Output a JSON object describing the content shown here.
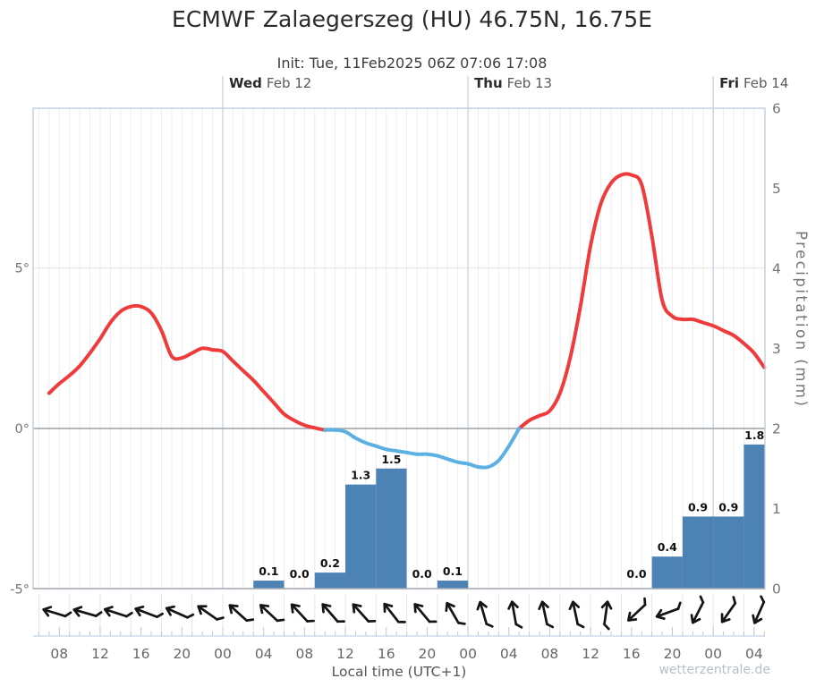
{
  "chart_data": {
    "type": "meteogram (smoothed temperature line + precipitation bars + wind arrows)",
    "title": "ECMWF Zalaegerszeg (HU) 46.75N, 16.75E",
    "subtitle": "Init: Tue, 11Feb2025 06Z 07:06 17:08",
    "xlabel": "Local time (UTC+1)",
    "watermark": "wetterzentrale.de",
    "time_axis": {
      "note": "t = hours since Tue 00:00 local; plotted span Tue ~05:30 to Fri ~05:00",
      "labels": [
        {
          "t": 8,
          "text": "08"
        },
        {
          "t": 12,
          "text": "12"
        },
        {
          "t": 16,
          "text": "16"
        },
        {
          "t": 20,
          "text": "20"
        },
        {
          "t": 24,
          "text": "00"
        },
        {
          "t": 28,
          "text": "04"
        },
        {
          "t": 32,
          "text": "08"
        },
        {
          "t": 36,
          "text": "12"
        },
        {
          "t": 40,
          "text": "16"
        },
        {
          "t": 44,
          "text": "20"
        },
        {
          "t": 48,
          "text": "00"
        },
        {
          "t": 52,
          "text": "04"
        },
        {
          "t": 56,
          "text": "08"
        },
        {
          "t": 60,
          "text": "12"
        },
        {
          "t": 64,
          "text": "16"
        },
        {
          "t": 68,
          "text": "20"
        },
        {
          "t": 72,
          "text": "00"
        },
        {
          "t": 76,
          "text": "04"
        }
      ]
    },
    "day_markers": [
      {
        "t": 24,
        "day": "Wed",
        "date": "Feb 12"
      },
      {
        "t": 48,
        "day": "Thu",
        "date": "Feb 13"
      },
      {
        "t": 72,
        "day": "Fri",
        "date": "Feb 14"
      }
    ],
    "temperature": {
      "unit": "°C",
      "ylim": [
        -5,
        10
      ],
      "axis_labels": [
        {
          "v": 5,
          "text": "5°"
        },
        {
          "v": 0,
          "text": "0°"
        },
        {
          "v": -5,
          "text": "-5°"
        }
      ],
      "color_above_zero": "#ef3b3b",
      "color_below_zero": "#5cb1e2",
      "zero_cross_t": [
        34,
        53
      ],
      "points_format": "[t_hours, degC]",
      "points": [
        [
          7,
          1.1
        ],
        [
          8,
          1.4
        ],
        [
          9,
          1.65
        ],
        [
          10,
          1.95
        ],
        [
          11,
          2.35
        ],
        [
          12,
          2.8
        ],
        [
          13,
          3.3
        ],
        [
          14,
          3.65
        ],
        [
          15,
          3.8
        ],
        [
          16,
          3.8
        ],
        [
          17,
          3.6
        ],
        [
          18,
          3.05
        ],
        [
          19,
          2.25
        ],
        [
          20,
          2.2
        ],
        [
          21,
          2.35
        ],
        [
          22,
          2.5
        ],
        [
          23,
          2.45
        ],
        [
          24,
          2.4
        ],
        [
          25,
          2.1
        ],
        [
          26,
          1.8
        ],
        [
          27,
          1.5
        ],
        [
          28,
          1.15
        ],
        [
          29,
          0.8
        ],
        [
          30,
          0.45
        ],
        [
          31,
          0.25
        ],
        [
          32,
          0.1
        ],
        [
          33,
          0.02
        ],
        [
          34,
          -0.05
        ],
        [
          35,
          -0.05
        ],
        [
          36,
          -0.1
        ],
        [
          37,
          -0.3
        ],
        [
          38,
          -0.45
        ],
        [
          39,
          -0.55
        ],
        [
          40,
          -0.65
        ],
        [
          41,
          -0.7
        ],
        [
          42,
          -0.75
        ],
        [
          43,
          -0.8
        ],
        [
          44,
          -0.8
        ],
        [
          45,
          -0.85
        ],
        [
          46,
          -0.95
        ],
        [
          47,
          -1.05
        ],
        [
          48,
          -1.1
        ],
        [
          49,
          -1.2
        ],
        [
          50,
          -1.2
        ],
        [
          51,
          -1.0
        ],
        [
          52,
          -0.55
        ],
        [
          53,
          0.0
        ],
        [
          54,
          0.25
        ],
        [
          55,
          0.4
        ],
        [
          56,
          0.55
        ],
        [
          57,
          1.1
        ],
        [
          58,
          2.2
        ],
        [
          59,
          3.8
        ],
        [
          60,
          5.7
        ],
        [
          61,
          7.0
        ],
        [
          62,
          7.65
        ],
        [
          63,
          7.9
        ],
        [
          64,
          7.9
        ],
        [
          65,
          7.6
        ],
        [
          66,
          6.0
        ],
        [
          67,
          4.0
        ],
        [
          68,
          3.5
        ],
        [
          69,
          3.4
        ],
        [
          70,
          3.4
        ],
        [
          71,
          3.3
        ],
        [
          72,
          3.2
        ],
        [
          73,
          3.05
        ],
        [
          74,
          2.9
        ],
        [
          75,
          2.65
        ],
        [
          76,
          2.35
        ],
        [
          77,
          1.9
        ]
      ]
    },
    "precipitation": {
      "unit": "mm",
      "ylabel": "Precipitation (mm)",
      "ylim": [
        0,
        6
      ],
      "axis_labels": [
        {
          "v": 6,
          "text": "6"
        },
        {
          "v": 5,
          "text": "5"
        },
        {
          "v": 4,
          "text": "4"
        },
        {
          "v": 3,
          "text": "3"
        },
        {
          "v": 2,
          "text": "2"
        },
        {
          "v": 1,
          "text": "1"
        },
        {
          "v": 0,
          "text": "0"
        }
      ],
      "bar_color": "#4d83b4",
      "bars_format": "3-hour totals, t = slot start hour",
      "bars": [
        {
          "t": 27,
          "dur": 3,
          "value": 0.1,
          "label": "0.1"
        },
        {
          "t": 30,
          "dur": 3,
          "value": 0.0,
          "label": "0.0"
        },
        {
          "t": 33,
          "dur": 3,
          "value": 0.2,
          "label": "0.2"
        },
        {
          "t": 36,
          "dur": 3,
          "value": 1.3,
          "label": "1.3"
        },
        {
          "t": 39,
          "dur": 3,
          "value": 1.5,
          "label": "1.5"
        },
        {
          "t": 42,
          "dur": 3,
          "value": 0.0,
          "label": "0.0"
        },
        {
          "t": 45,
          "dur": 3,
          "value": 0.1,
          "label": "0.1"
        },
        {
          "t": 63,
          "dur": 3,
          "value": 0.0,
          "label": "0.0"
        },
        {
          "t": 66,
          "dur": 3,
          "value": 0.4,
          "label": "0.4"
        },
        {
          "t": 69,
          "dur": 3,
          "value": 0.9,
          "label": "0.9"
        },
        {
          "t": 72,
          "dur": 3,
          "value": 0.9,
          "label": "0.9"
        },
        {
          "t": 75,
          "dur": 3,
          "value": 1.8,
          "label": "1.8"
        }
      ]
    },
    "wind_arrows": {
      "slot_hours": 3,
      "dir_note": "degrees clockwise from up = direction arrow points",
      "arrows": [
        {
          "t": 6,
          "dir": 287
        },
        {
          "t": 9,
          "dir": 286
        },
        {
          "t": 12,
          "dir": 288
        },
        {
          "t": 15,
          "dir": 291
        },
        {
          "t": 18,
          "dir": 294
        },
        {
          "t": 21,
          "dir": 305
        },
        {
          "t": 24,
          "dir": 312
        },
        {
          "t": 27,
          "dir": 313
        },
        {
          "t": 30,
          "dir": 317
        },
        {
          "t": 33,
          "dir": 319
        },
        {
          "t": 36,
          "dir": 318
        },
        {
          "t": 39,
          "dir": 322
        },
        {
          "t": 42,
          "dir": 320
        },
        {
          "t": 45,
          "dir": 330
        },
        {
          "t": 48,
          "dir": 344
        },
        {
          "t": 51,
          "dir": 350
        },
        {
          "t": 54,
          "dir": 348
        },
        {
          "t": 57,
          "dir": 348
        },
        {
          "t": 60,
          "dir": 8
        },
        {
          "t": 63,
          "dir": 227
        },
        {
          "t": 66,
          "dir": 250
        },
        {
          "t": 69,
          "dir": 207
        },
        {
          "t": 72,
          "dir": 215
        },
        {
          "t": 75,
          "dir": 204
        }
      ]
    }
  }
}
